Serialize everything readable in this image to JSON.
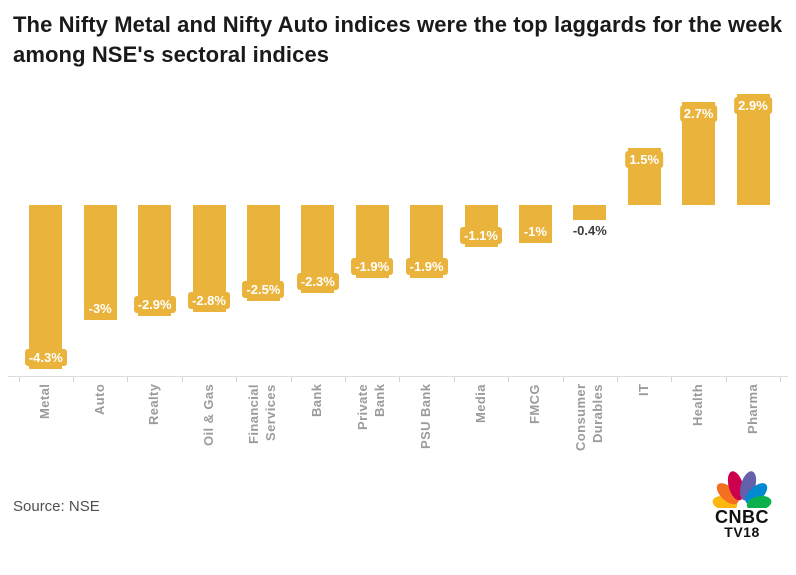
{
  "page": {
    "source_label": "Source: NSE",
    "logo": {
      "line1": "CNBC",
      "line2": "TV18",
      "peacock_colors": [
        "#FCB711",
        "#F37021",
        "#CC004C",
        "#6460AA",
        "#0089D0",
        "#0DB14B"
      ]
    }
  },
  "chart_data": {
    "type": "bar",
    "title": "The Nifty Metal and Nifty Auto indices were the top laggards for the week among NSE's sectoral indices",
    "categories": [
      "Metal",
      "Auto",
      "Realty",
      "Oil & Gas",
      "Financial Services",
      "Bank",
      "Private Bank",
      "PSU Bank",
      "Media",
      "FMCG",
      "Consumer Durables",
      "IT",
      "Health",
      "Pharma"
    ],
    "axis_labels": [
      "Metal",
      "Auto",
      "Realty",
      "Oil & Gas",
      "Financial\nServices",
      "Bank",
      "Private\nBank",
      "PSU Bank",
      "Media",
      "FMCG",
      "Consumer\nDurables",
      "IT",
      "Health",
      "Pharma"
    ],
    "values": [
      -4.3,
      -3,
      -2.9,
      -2.8,
      -2.5,
      -2.3,
      -1.9,
      -1.9,
      -1.1,
      -1,
      -0.4,
      1.5,
      2.7,
      2.9
    ],
    "data_labels": [
      "-4.3%",
      "-3%",
      "-2.9%",
      "-2.8%",
      "-2.5%",
      "-2.3%",
      "-1.9%",
      "-1.9%",
      "-1.1%",
      "-1%",
      "-0.4%",
      "1.5%",
      "2.7%",
      "2.9%"
    ],
    "label_inside": [
      true,
      true,
      true,
      true,
      true,
      true,
      true,
      true,
      true,
      true,
      false,
      true,
      true,
      true
    ],
    "unit": "%",
    "bar_color": "#E9B33C",
    "inside_label_color": "#FFFFFF",
    "outside_label_color": "#3C3C3C",
    "axis_label_color": "#9B9B9B",
    "baseline": 0,
    "ylim": [
      -4.6,
      3.2
    ],
    "grid": "off",
    "legend": "none",
    "orientation": "vertical-columns",
    "xlabel": "",
    "ylabel": ""
  }
}
